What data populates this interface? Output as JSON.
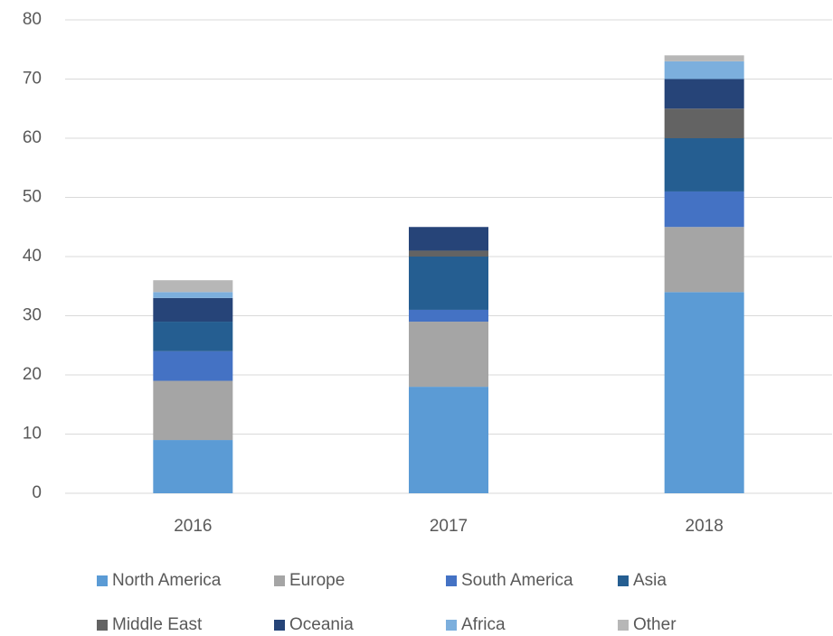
{
  "chart_data": {
    "type": "stacked_bar",
    "categories": [
      "2016",
      "2017",
      "2018"
    ],
    "series": [
      {
        "name": "North America",
        "color": "#5b9bd5",
        "values": [
          9,
          18,
          34
        ]
      },
      {
        "name": "Europe",
        "color": "#a5a5a5",
        "values": [
          10,
          11,
          11
        ]
      },
      {
        "name": "South America",
        "color": "#4472c4",
        "values": [
          5,
          2,
          6
        ]
      },
      {
        "name": "Asia",
        "color": "#255e91",
        "values": [
          5,
          9,
          9
        ]
      },
      {
        "name": "Middle East",
        "color": "#636363",
        "values": [
          0,
          1,
          5
        ]
      },
      {
        "name": "Oceania",
        "color": "#264478",
        "values": [
          4,
          4,
          5
        ]
      },
      {
        "name": "Africa",
        "color": "#7cafdd",
        "values": [
          1,
          0,
          3
        ]
      },
      {
        "name": "Other",
        "color": "#b7b7b7",
        "values": [
          2,
          0,
          1
        ]
      }
    ],
    "ylim": [
      0,
      80
    ],
    "yticks": [
      0,
      10,
      20,
      30,
      40,
      50,
      60,
      70,
      80
    ],
    "grid": true,
    "legend": "bottom"
  }
}
